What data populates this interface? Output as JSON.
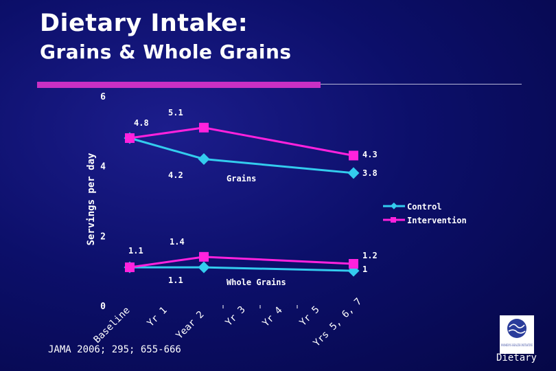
{
  "slide": {
    "title": "Dietary Intake:",
    "subtitle": "Grains & Whole Grains",
    "citation": "JAMA 2006; 295; 655-666",
    "footer_label": "Dietary",
    "logo_text": "WOMEN'S HEALTH INITIATIVE"
  },
  "colors": {
    "control": "#33ccee",
    "intervention": "#ff22dd",
    "accent_bar": "#c930c4"
  },
  "chart_data": {
    "type": "line",
    "ylabel": "Servings per day",
    "ylim": [
      0,
      6
    ],
    "yticks": [
      0,
      2,
      4,
      6
    ],
    "categories": [
      "Baseline",
      "Yr 1",
      "Year 2",
      "Yr 3",
      "Yr 4",
      "Yr 5",
      "Yrs 5, 6, 7"
    ],
    "groups": [
      {
        "name": "Grains",
        "series": [
          {
            "name": "Control",
            "marker": "diamond",
            "points": [
              {
                "category": "Baseline",
                "y": 4.8
              },
              {
                "category": "Year 2",
                "y": 4.2
              },
              {
                "category": "Yrs 5, 6, 7",
                "y": 3.8
              }
            ]
          },
          {
            "name": "Intervention",
            "marker": "square",
            "points": [
              {
                "category": "Baseline",
                "y": 4.8
              },
              {
                "category": "Year 2",
                "y": 5.1
              },
              {
                "category": "Yrs 5, 6, 7",
                "y": 4.3
              }
            ]
          }
        ]
      },
      {
        "name": "Whole Grains",
        "series": [
          {
            "name": "Control",
            "marker": "diamond",
            "points": [
              {
                "category": "Baseline",
                "y": 1.1
              },
              {
                "category": "Year 2",
                "y": 1.1
              },
              {
                "category": "Yrs 5, 6, 7",
                "y": 1.0
              }
            ]
          },
          {
            "name": "Intervention",
            "marker": "square",
            "points": [
              {
                "category": "Baseline",
                "y": 1.1
              },
              {
                "category": "Year 2",
                "y": 1.4
              },
              {
                "category": "Yrs 5, 6, 7",
                "y": 1.2
              }
            ]
          }
        ]
      }
    ],
    "data_labels": [
      {
        "text": "4.8",
        "series": "Intervention",
        "group": "Grains",
        "category": "Baseline"
      },
      {
        "text": "5.1",
        "series": "Intervention",
        "group": "Grains",
        "category": "Year 2"
      },
      {
        "text": "4.3",
        "series": "Intervention",
        "group": "Grains",
        "category": "Yrs 5, 6, 7"
      },
      {
        "text": "4.2",
        "series": "Control",
        "group": "Grains",
        "category": "Year 2"
      },
      {
        "text": "3.8",
        "series": "Control",
        "group": "Grains",
        "category": "Yrs 5, 6, 7"
      },
      {
        "text": "1.1",
        "series": "Intervention",
        "group": "Whole Grains",
        "category": "Baseline"
      },
      {
        "text": "1.4",
        "series": "Intervention",
        "group": "Whole Grains",
        "category": "Year 2"
      },
      {
        "text": "1.2",
        "series": "Intervention",
        "group": "Whole Grains",
        "category": "Yrs 5, 6, 7"
      },
      {
        "text": "1.1",
        "series": "Control",
        "group": "Whole Grains",
        "category": "Year 2"
      },
      {
        "text": "1",
        "series": "Control",
        "group": "Whole Grains",
        "category": "Yrs 5, 6, 7"
      }
    ],
    "legend": {
      "position": "right",
      "entries": [
        "Control",
        "Intervention"
      ]
    }
  }
}
